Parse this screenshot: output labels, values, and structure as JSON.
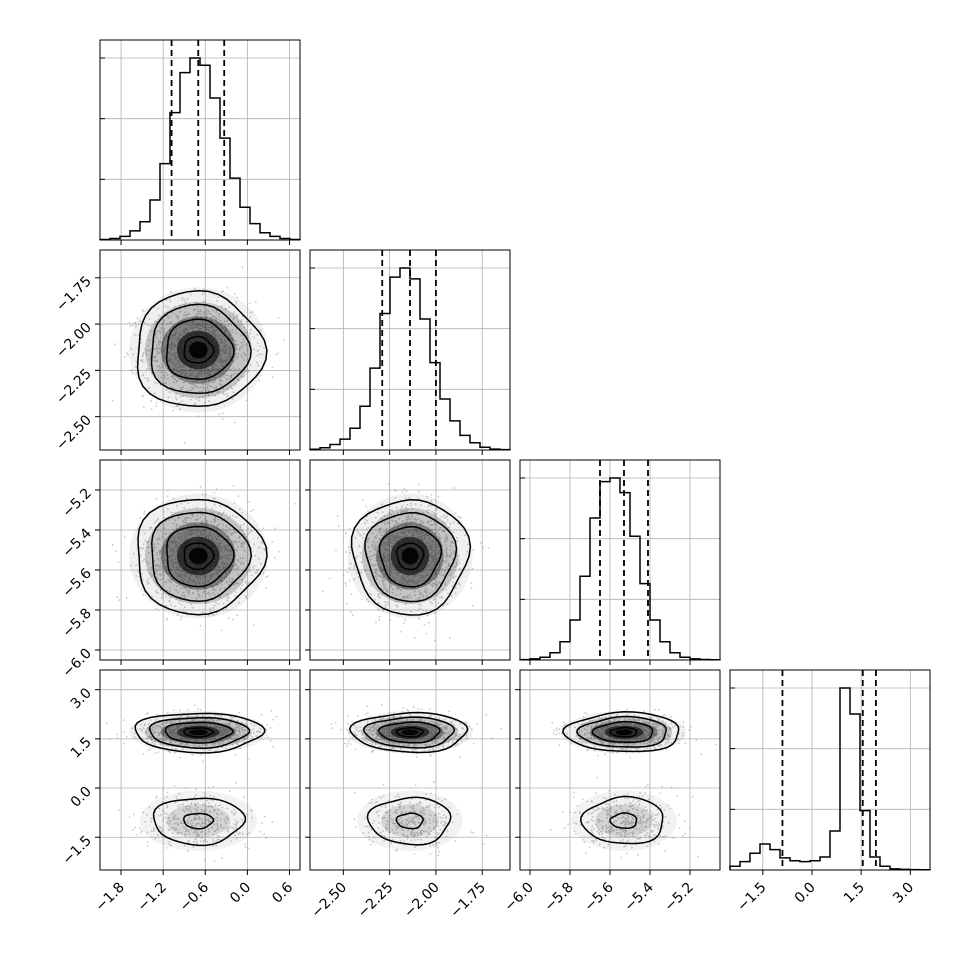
{
  "chart_data": {
    "type": "corner",
    "grid": true,
    "n_params": 4,
    "params": [
      {
        "id": "p0",
        "range": [
          -2.1,
          0.75
        ],
        "ticks": [
          -1.8,
          -1.2,
          -0.6,
          0.0,
          0.6
        ],
        "tick_labels": [
          "−1.8",
          "−1.2",
          "−0.6",
          "0.0",
          "0.6"
        ],
        "mean": -0.7,
        "sd": 0.38,
        "quantiles": [
          -1.08,
          -0.7,
          -0.33
        ]
      },
      {
        "id": "p1",
        "range": [
          -2.68,
          -1.6
        ],
        "ticks": [
          -2.5,
          -2.25,
          -2.0,
          -1.75
        ],
        "tick_labels": [
          "−2.50",
          "−2.25",
          "−2.00",
          "−1.75"
        ],
        "mean": -2.14,
        "sd": 0.13,
        "quantiles": [
          -2.29,
          -2.14,
          -2.0
        ]
      },
      {
        "id": "p2",
        "range": [
          -6.05,
          -5.05
        ],
        "ticks": [
          -6.0,
          -5.8,
          -5.6,
          -5.4,
          -5.2
        ],
        "tick_labels": [
          "−6.0",
          "−5.8",
          "−5.6",
          "−5.4",
          "−5.2"
        ],
        "mean": -5.53,
        "sd": 0.12,
        "quantiles": [
          -5.65,
          -5.53,
          -5.41
        ]
      },
      {
        "id": "p3",
        "range": [
          -2.5,
          3.6
        ],
        "ticks": [
          -1.5,
          0.0,
          1.5,
          3.0
        ],
        "tick_labels": [
          "−1.5",
          "0.0",
          "1.5",
          "3.0"
        ],
        "quantiles": [
          -0.9,
          1.55,
          1.95
        ]
      }
    ],
    "hist_bins": 20,
    "histograms": {
      "p0": [
        0.003,
        0.008,
        0.02,
        0.05,
        0.1,
        0.22,
        0.42,
        0.7,
        0.92,
        1.0,
        0.96,
        0.78,
        0.56,
        0.34,
        0.18,
        0.09,
        0.04,
        0.02,
        0.008,
        0.003
      ],
      "p1": [
        0.004,
        0.012,
        0.03,
        0.06,
        0.12,
        0.24,
        0.45,
        0.75,
        0.95,
        1.0,
        0.94,
        0.72,
        0.48,
        0.28,
        0.16,
        0.08,
        0.04,
        0.015,
        0.005,
        0.002
      ],
      "p2": [
        0.002,
        0.006,
        0.015,
        0.04,
        0.1,
        0.22,
        0.46,
        0.78,
        0.98,
        1.0,
        0.92,
        0.68,
        0.42,
        0.22,
        0.1,
        0.04,
        0.015,
        0.006,
        0.003,
        0.001
      ],
      "p3": [
        0.02,
        0.045,
        0.09,
        0.14,
        0.11,
        0.065,
        0.05,
        0.045,
        0.05,
        0.07,
        0.21,
        0.98,
        0.84,
        0.32,
        0.07,
        0.02,
        0.006,
        0.003,
        0.002,
        0.001
      ]
    },
    "p3_modes": [
      {
        "center": 1.7,
        "sd": 0.25,
        "weight": 0.72
      },
      {
        "center": -1.0,
        "sd": 0.42,
        "weight": 0.28
      }
    ]
  },
  "colors": {
    "line": "#000000",
    "grid": "#b0b0b0",
    "points": "#888888",
    "density": "#000000"
  }
}
